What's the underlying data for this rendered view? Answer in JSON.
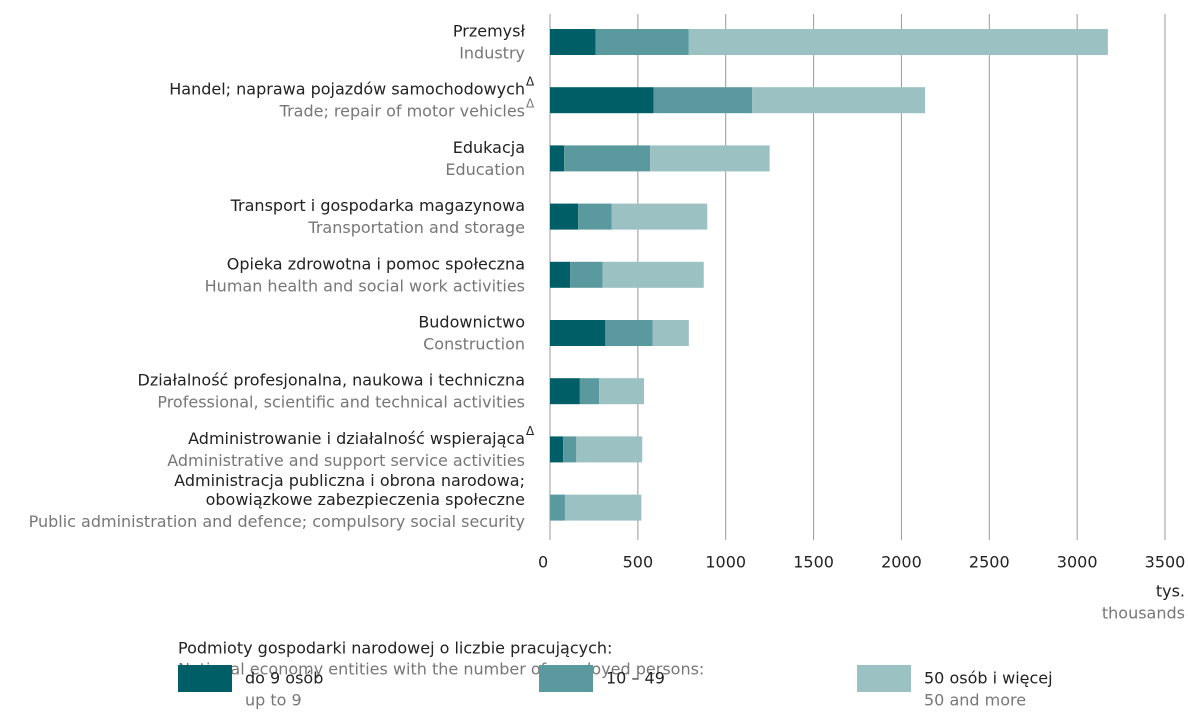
{
  "chart_data": {
    "type": "bar",
    "orientation": "horizontal",
    "stacked": true,
    "categories": [
      {
        "pl": [
          "Przemysł"
        ],
        "en": "Industry"
      },
      {
        "pl": [
          "Handel; naprawa pojazdów samochodowych"
        ],
        "en": "Trade; repair of motor vehicles",
        "note": "Δ"
      },
      {
        "pl": [
          "Edukacja"
        ],
        "en": "Education"
      },
      {
        "pl": [
          "Transport i gospodarka magazynowa"
        ],
        "en": "Transportation and storage"
      },
      {
        "pl": [
          "Opieka zdrowotna i pomoc społeczna"
        ],
        "en": "Human health and social work activities"
      },
      {
        "pl": [
          "Budownictwo"
        ],
        "en": "Construction"
      },
      {
        "pl": [
          "Działalność profesjonalna, naukowa i techniczna"
        ],
        "en": "Professional, scientific and technical activities"
      },
      {
        "pl": [
          "Administrowanie i działalność wspierająca"
        ],
        "en": "Administrative and support service activities",
        "note_pl": "Δ"
      },
      {
        "pl": [
          "Administracja publiczna i obrona narodowa;",
          "obowiązkowe zabezpieczenia społeczne"
        ],
        "en": "Public administration and defence; compulsory social security"
      }
    ],
    "series": [
      {
        "name": "do 9 osób",
        "name_en": "up to 9",
        "color": "#005f66",
        "values": [
          260,
          590,
          80,
          160,
          115,
          315,
          170,
          75,
          0
        ]
      },
      {
        "name": "10 – 49",
        "color": "#5a9a9e",
        "values": [
          530,
          560,
          490,
          190,
          185,
          270,
          110,
          75,
          85
        ]
      },
      {
        "name": "50 osób i więcej",
        "name_en": "50 and more",
        "color": "#9bc1c3",
        "values": [
          2385,
          985,
          680,
          545,
          575,
          205,
          255,
          375,
          435
        ]
      }
    ],
    "xlim": [
      0,
      3500
    ],
    "xticks": [
      0,
      500,
      1000,
      1500,
      2000,
      2500,
      3000,
      3500
    ],
    "xlabel": "tys.",
    "xlabel_en": "thousands",
    "legend_title": "Podmioty gospodarki narodowej o liczbie pracujących:",
    "legend_title_en": "National economy entities with the number of employed persons:",
    "grid": true,
    "legend": "bottom"
  }
}
